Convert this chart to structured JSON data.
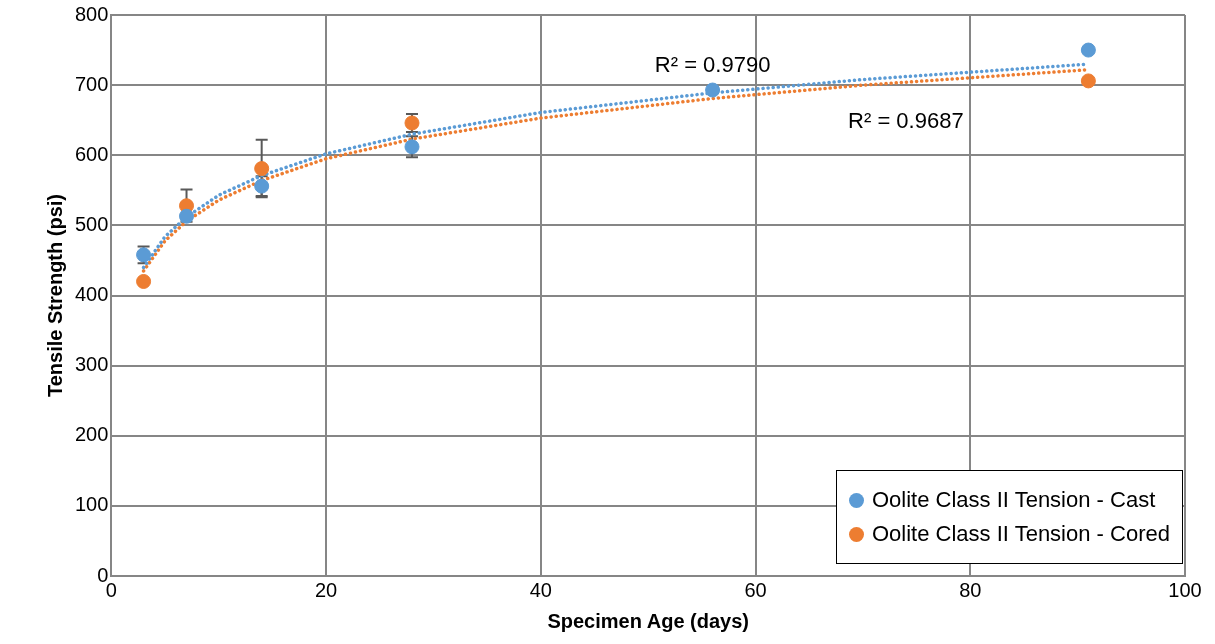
{
  "chart_data": {
    "type": "scatter",
    "xlabel": "Specimen Age (days)",
    "ylabel": "Tensile Strength (psi)",
    "xlim": [
      0,
      100
    ],
    "xticks": [
      0,
      20,
      40,
      60,
      80,
      100
    ],
    "ylim": [
      0,
      800
    ],
    "yticks": [
      0,
      100,
      200,
      300,
      400,
      500,
      600,
      700,
      800
    ],
    "grid": true,
    "legend": "bottom right",
    "marker": "circle",
    "annotations": [
      "R² = 0.9790",
      "R² = 0.9687"
    ],
    "series": [
      {
        "name": "Oolite Class II Tension - Cast",
        "color": "#5b9bd5",
        "x": [
          3,
          7,
          14,
          28,
          56,
          91
        ],
        "values": [
          458,
          513,
          556,
          612,
          693,
          750
        ],
        "errors": [
          12,
          null,
          14,
          15,
          null,
          null
        ]
      },
      {
        "name": "Oolite Class II Tension - Cored",
        "color": "#ed7d31",
        "x": [
          3,
          7,
          14,
          28,
          56,
          91
        ],
        "values": [
          420,
          528,
          581,
          646,
          null,
          706
        ],
        "errors": [
          null,
          23,
          41,
          13,
          null,
          null
        ]
      },
      {
        "type": "line",
        "line_style": "dotted",
        "marker": "none",
        "color": "#5b9bd5",
        "x": [
          3,
          5,
          7,
          10,
          14,
          20,
          28,
          40,
          56,
          70,
          91
        ],
        "values": [
          440,
          484,
          512,
          543,
          571,
          602,
          630,
          661,
          689,
          708,
          730
        ]
      },
      {
        "type": "line",
        "line_style": "dotted",
        "marker": "none",
        "color": "#ed7d31",
        "x": [
          3,
          5,
          7,
          10,
          14,
          20,
          28,
          40,
          56,
          70,
          91
        ],
        "values": [
          435,
          478,
          506,
          536,
          564,
          595,
          623,
          653,
          681,
          700,
          722
        ]
      }
    ]
  }
}
